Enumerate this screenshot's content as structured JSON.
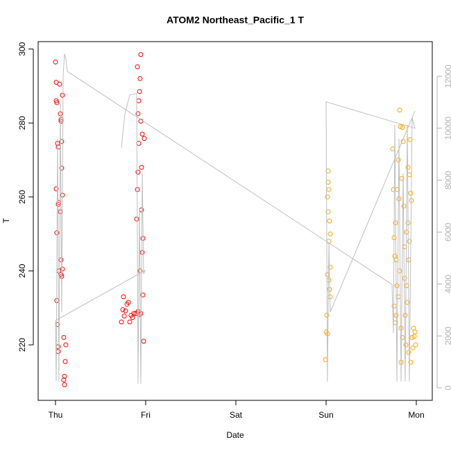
{
  "chart_data": {
    "type": "scatter",
    "title": "ATOM2 Northeast_Pacific_1 T",
    "x_label": "Date",
    "y_label": "T",
    "xlim": [
      -0.192,
      4.177
    ],
    "xticks": [
      {
        "value": 0,
        "label": "Thu"
      },
      {
        "value": 1,
        "label": "Fri"
      },
      {
        "value": 2,
        "label": "Sat"
      },
      {
        "value": 3,
        "label": "Sun"
      },
      {
        "value": 4,
        "label": "Mon"
      }
    ],
    "ylim": [
      205,
      302
    ],
    "yticks": [
      220,
      240,
      260,
      280,
      300
    ],
    "y2lim": [
      -481,
      13337
    ],
    "y2ticks": [
      0,
      2000,
      4000,
      6000,
      8000,
      10000,
      12000
    ],
    "series": [
      {
        "color": "#ff0000",
        "x": [
          0,
          0.008,
          0.008,
          0.015,
          0.023,
          0.031,
          0.031,
          0.038,
          0.046,
          0.054,
          0.062,
          0.069,
          0.077,
          0.069,
          0.077,
          0.008,
          0.015,
          0.038,
          0.062,
          0.069,
          0.077,
          0.062,
          0.015,
          0.023,
          0.031,
          0.031,
          0.092,
          0.115,
          0.108,
          0.1,
          0.092,
          0.1,
          0.054,
          0.062,
          0.731,
          0.746,
          0.754,
          0.762,
          0.777,
          0.792,
          0.808,
          0.823,
          0.838,
          0.854,
          0.869,
          0.892,
          0.915,
          0.931,
          0.946,
          0.9,
          0.908,
          0.915,
          0.923,
          0.915,
          0.923,
          0.931,
          0.938,
          0.946,
          0.908,
          0.962,
          0.954,
          0.969,
          0.977,
          0.969,
          0.954,
          0.946,
          0.985,
          0.962,
          0.938
        ],
        "values": [
          296.5,
          291,
          286,
          285.5,
          274.5,
          273.5,
          258,
          258.5,
          290.5,
          282.5,
          280.5,
          275,
          287.5,
          267.8,
          260.5,
          262.2,
          250.3,
          240,
          239,
          238.5,
          240.5,
          243,
          232,
          225.5,
          219.5,
          218.2,
          222,
          220,
          215.5,
          211.5,
          210.5,
          209.2,
          256,
          281,
          226.2,
          229.5,
          233,
          227.8,
          229.2,
          231,
          231.5,
          226.2,
          228,
          227.4,
          228.5,
          228.5,
          229,
          228.2,
          228.5,
          254,
          262,
          266.7,
          274.5,
          282.5,
          286,
          288.5,
          292,
          298.5,
          295.2,
          277,
          268,
          248.8,
          221,
          233.5,
          256.5,
          280.5,
          275.8,
          245,
          240
        ]
      },
      {
        "color": "#ffa500",
        "x": [
          2.992,
          3,
          3.008,
          3.015,
          3.023,
          3.023,
          3.031,
          3.015,
          3.023,
          3.038,
          3.031,
          3.046,
          3.046,
          3.031,
          3.046,
          3.038,
          3.015,
          3.738,
          3.746,
          3.754,
          3.762,
          3.769,
          3.777,
          3.785,
          3.792,
          3.8,
          3.808,
          3.815,
          3.823,
          3.831,
          3.838,
          3.846,
          3.854,
          3.862,
          3.869,
          3.877,
          3.885,
          3.892,
          3.9,
          3.908,
          3.915,
          3.923,
          3.931,
          3.938,
          3.946,
          3.954,
          3.962,
          3.969,
          3.977,
          3.985,
          3.992,
          3.938,
          3.769,
          3.777,
          3.8,
          3.815,
          3.831,
          3.846,
          3.754,
          3.869,
          3.892,
          3.908,
          3.923,
          3.915
        ],
        "values": [
          216,
          223.5,
          228,
          239,
          267,
          264,
          262,
          260,
          256,
          253.5,
          248,
          250,
          241,
          237.5,
          233,
          235,
          223,
          273,
          262,
          249,
          244,
          253,
          243,
          236,
          262,
          270,
          259.5,
          283.5,
          279,
          215.3,
          265,
          278.8,
          275,
          257.5,
          246.5,
          228,
          220,
          250.5,
          231.5,
          268,
          243,
          266,
          275.5,
          261,
          259,
          222,
          219.2,
          224.5,
          222.3,
          223.5,
          220,
          215.3,
          226,
          228,
          233,
          240,
          224.5,
          222,
          230.5,
          238,
          236,
          253,
          248,
          218
        ]
      },
      {
        "color": "#bebebe",
        "axis": "y2",
        "style": "line",
        "x": [
          0.731,
          0.769,
          0.823,
          0.9,
          0.915,
          0.931,
          0.946,
          0.962,
          0.977,
          0.992,
          0,
          0.008,
          0.023,
          0.038,
          0.054,
          0.069,
          0.085,
          0.1,
          0.115,
          0.131,
          3.731,
          3.746,
          3.762,
          3.785,
          3.808,
          3.831,
          3.854,
          3.877,
          3.9,
          3.923,
          3.954,
          3.985,
          3,
          3.015,
          3.031,
          3.046,
          3.985
        ],
        "values": [
          9252,
          10535,
          11284,
          11337,
          160,
          6925,
          160,
          8262,
          4385,
          4519,
          2594,
          241,
          9600,
          241,
          10937,
          2915,
          12006,
          12862,
          12675,
          12193,
          3984,
          2112,
          10134,
          241,
          9600,
          241,
          8262,
          241,
          10134,
          241,
          10402,
          10001,
          11017,
          241,
          5589,
          2915,
          10669
        ]
      }
    ]
  }
}
